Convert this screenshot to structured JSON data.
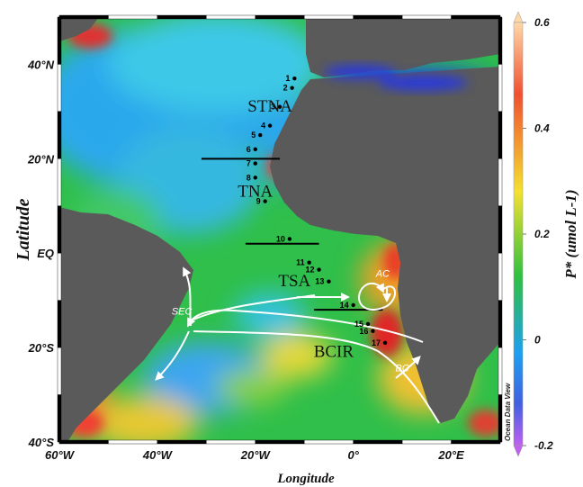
{
  "axes": {
    "x_label": "Longitude",
    "y_label": "Latitude",
    "x_ticks": [
      {
        "lon": -60,
        "label": "60°W"
      },
      {
        "lon": -40,
        "label": "40°W"
      },
      {
        "lon": -20,
        "label": "20°W"
      },
      {
        "lon": 0,
        "label": "0°"
      },
      {
        "lon": 20,
        "label": "20°E"
      }
    ],
    "y_ticks": [
      {
        "lat": 40,
        "label": "40°N"
      },
      {
        "lat": 20,
        "label": "20°N"
      },
      {
        "lat": 0,
        "label": "EQ"
      },
      {
        "lat": -20,
        "label": "20°S"
      },
      {
        "lat": -40,
        "label": "40°S"
      }
    ]
  },
  "colorbar": {
    "title": "P* (umol L-1)",
    "ticks": [
      "0.6",
      "0.4",
      "0.2",
      "0",
      "-0.2"
    ],
    "colors": [
      "#ffd8a8",
      "#f05030",
      "#f4e030",
      "#30c040",
      "#1ea0f0",
      "#4060e0",
      "#c060f0"
    ]
  },
  "credit": "Ocean Data View",
  "regions": [
    {
      "name": "STNA",
      "lon": -17,
      "lat": 30
    },
    {
      "name": "TNA",
      "lon": -20,
      "lat": 12
    },
    {
      "name": "TSA",
      "lon": -12,
      "lat": -7
    },
    {
      "name": "BCIR",
      "lon": -4,
      "lat": -22
    }
  ],
  "stations": [
    {
      "id": "1",
      "lon": -12,
      "lat": 37
    },
    {
      "id": "2",
      "lon": -12.5,
      "lat": 35
    },
    {
      "id": "3",
      "lon": -15,
      "lat": 31
    },
    {
      "id": "4",
      "lon": -17,
      "lat": 27
    },
    {
      "id": "5",
      "lon": -19,
      "lat": 25
    },
    {
      "id": "6",
      "lon": -20,
      "lat": 22
    },
    {
      "id": "7",
      "lon": -20,
      "lat": 19
    },
    {
      "id": "8",
      "lon": -20,
      "lat": 16
    },
    {
      "id": "9",
      "lon": -18,
      "lat": 11
    },
    {
      "id": "10",
      "lon": -13,
      "lat": 3
    },
    {
      "id": "11",
      "lon": -9,
      "lat": -2
    },
    {
      "id": "12",
      "lon": -7,
      "lat": -3.5
    },
    {
      "id": "13",
      "lon": -5,
      "lat": -6
    },
    {
      "id": "14",
      "lon": 0,
      "lat": -11
    },
    {
      "id": "15",
      "lon": 3,
      "lat": -15
    },
    {
      "id": "16",
      "lon": 4,
      "lat": -16.5
    },
    {
      "id": "17",
      "lon": 6.5,
      "lat": -19
    }
  ],
  "boundaries": [
    {
      "lon1": -31,
      "lon2": -15,
      "lat": 20
    },
    {
      "lon1": -22,
      "lon2": -7,
      "lat": 2
    },
    {
      "lon1": -8,
      "lon2": 6,
      "lat": -12
    }
  ],
  "currents": [
    {
      "name": "SEC",
      "lon": -35,
      "lat": -13
    },
    {
      "name": "AC",
      "lon": 6,
      "lat": -5
    },
    {
      "name": "BC",
      "lon": 10,
      "lat": -25
    }
  ]
}
